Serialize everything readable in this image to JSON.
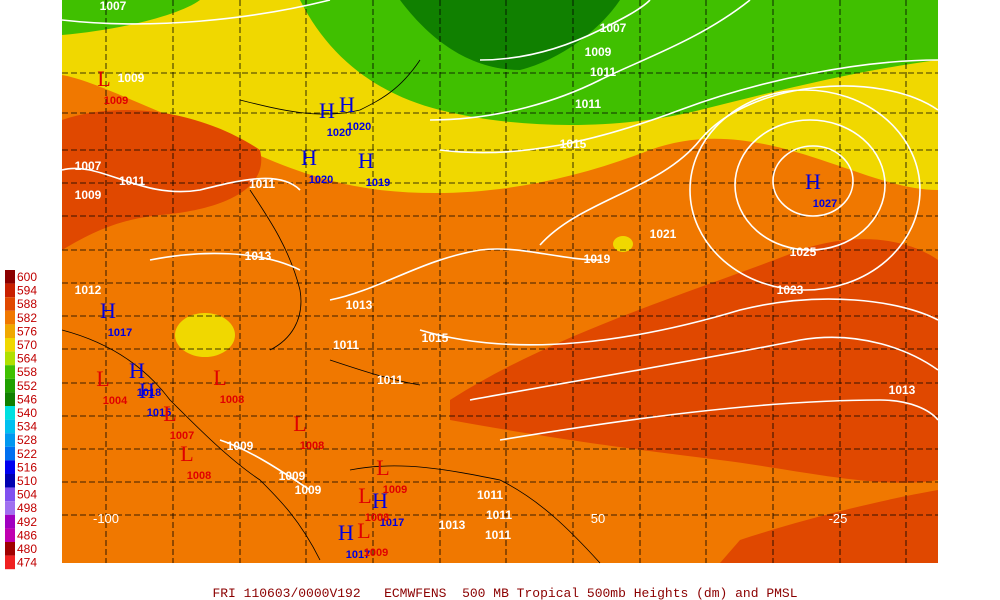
{
  "caption": "FRI 110603/0000V192   ECMWFENS  500 MB Tropical 500mb Heights (dm) and PMSL",
  "legend": {
    "levels": [
      {
        "value": 600,
        "color": "#8b0000"
      },
      {
        "value": 594,
        "color": "#c82000"
      },
      {
        "value": 588,
        "color": "#e04800"
      },
      {
        "value": 582,
        "color": "#f07800"
      },
      {
        "value": 576,
        "color": "#f0a800"
      },
      {
        "value": 570,
        "color": "#f0d800"
      },
      {
        "value": 564,
        "color": "#b0e000"
      },
      {
        "value": 558,
        "color": "#40c000"
      },
      {
        "value": 552,
        "color": "#20a000"
      },
      {
        "value": 546,
        "color": "#108000"
      },
      {
        "value": 540,
        "color": "#00e0e0"
      },
      {
        "value": 534,
        "color": "#00c0f0"
      },
      {
        "value": 528,
        "color": "#0098f0"
      },
      {
        "value": 522,
        "color": "#0070f0"
      },
      {
        "value": 516,
        "color": "#0000f0"
      },
      {
        "value": 510,
        "color": "#0000b0"
      },
      {
        "value": 504,
        "color": "#8050f0"
      },
      {
        "value": 498,
        "color": "#a070f0"
      },
      {
        "value": 492,
        "color": "#a000c0"
      },
      {
        "value": 486,
        "color": "#c000b0"
      },
      {
        "value": 480,
        "color": "#a00000"
      },
      {
        "value": 474,
        "color": "#f02020"
      }
    ]
  },
  "axis_labels": [
    "-100",
    "50",
    "-25"
  ],
  "isobar_labels": [
    1007,
    1007,
    1009,
    1011,
    1011,
    1015,
    1019,
    1021,
    1025,
    1023,
    1013,
    1015,
    1013,
    1011,
    1011,
    1013,
    1011,
    1011,
    1009,
    1007,
    1009,
    1012,
    1009,
    1009,
    1009,
    1011,
    1011,
    1011,
    1013
  ],
  "centers": [
    {
      "symbol": "H",
      "pressure": 1020
    },
    {
      "symbol": "H",
      "pressure": 1020
    },
    {
      "symbol": "H",
      "pressure": 1020
    },
    {
      "symbol": "H",
      "pressure": 1019
    },
    {
      "symbol": "H",
      "pressure": 1027
    },
    {
      "symbol": "H",
      "pressure": 1017
    },
    {
      "symbol": "H",
      "pressure": 1018
    },
    {
      "symbol": "H",
      "pressure": 1015
    },
    {
      "symbol": "H",
      "pressure": 1017
    },
    {
      "symbol": "H",
      "pressure": 1017
    },
    {
      "symbol": "L",
      "pressure": 1009
    },
    {
      "symbol": "L",
      "pressure": 1004
    },
    {
      "symbol": "L",
      "pressure": 1008
    },
    {
      "symbol": "L",
      "pressure": 1008
    },
    {
      "symbol": "L",
      "pressure": 1008
    },
    {
      "symbol": "L",
      "pressure": 1009
    },
    {
      "symbol": "L",
      "pressure": 1008
    },
    {
      "symbol": "L",
      "pressure": 1007
    },
    {
      "symbol": "L",
      "pressure": 1009
    }
  ]
}
